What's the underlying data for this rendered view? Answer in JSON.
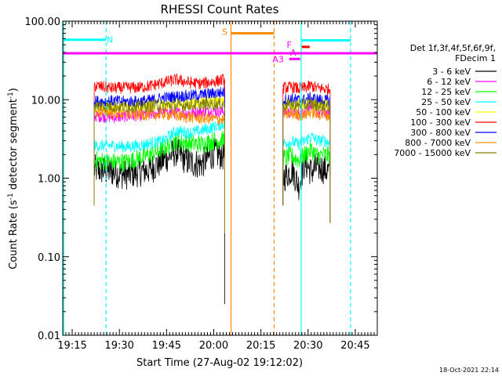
{
  "chart_data": {
    "type": "line",
    "title": "RHESSI Count Rates",
    "xlabel": "Start Time (27-Aug-02 19:12:02)",
    "ylabel_main": "Count Rate (s",
    "ylabel_sup1": "-1",
    "ylabel_mid": " detector segment",
    "ylabel_sup2": "-1",
    "ylabel_end": ")",
    "x_unit": "minutes since 19:12:02",
    "xlim": [
      0,
      100
    ],
    "ylim": [
      0.01,
      100
    ],
    "yscale": "log",
    "x_ticks": [
      {
        "m": 3,
        "label": "19:15"
      },
      {
        "m": 18,
        "label": "19:30"
      },
      {
        "m": 33,
        "label": "19:45"
      },
      {
        "m": 48,
        "label": "20:00"
      },
      {
        "m": 63,
        "label": "20:15"
      },
      {
        "m": 78,
        "label": "20:30"
      },
      {
        "m": 93,
        "label": "20:45"
      }
    ],
    "y_ticks": [
      {
        "v": 0.01,
        "label": "0.01"
      },
      {
        "v": 0.1,
        "label": "0.10"
      },
      {
        "v": 1,
        "label": "1.00"
      },
      {
        "v": 10,
        "label": "10.00"
      },
      {
        "v": 100,
        "label": "100.00"
      }
    ],
    "legend_header": [
      "Det 1f,3f,4f,5f,6f,9f,",
      "FDecim 1"
    ],
    "legend_placement": "right",
    "series": [
      {
        "name": "3 - 6 keV",
        "color": "#000000",
        "segA": [
          [
            10,
            1.3
          ],
          [
            16,
            1.2
          ],
          [
            20,
            1.1
          ],
          [
            24,
            1.2
          ],
          [
            28,
            1.3
          ],
          [
            32,
            1.7
          ],
          [
            36,
            2.2
          ],
          [
            40,
            1.6
          ],
          [
            44,
            1.5
          ],
          [
            48,
            2.1
          ],
          [
            51.5,
            1.9
          ]
        ],
        "segB": [
          [
            70,
            1.0
          ],
          [
            73,
            1.3
          ],
          [
            75,
            0.8
          ],
          [
            77,
            1.6
          ],
          [
            79,
            1.2
          ],
          [
            81,
            1.4
          ],
          [
            83,
            1.3
          ],
          [
            85,
            1.2
          ]
        ]
      },
      {
        "name": "6 - 12 keV",
        "color": "#ff00ff",
        "segA": [
          [
            10,
            6.2
          ],
          [
            16,
            6.0
          ],
          [
            20,
            6.1
          ],
          [
            24,
            6.3
          ],
          [
            28,
            6.5
          ],
          [
            32,
            7.0
          ],
          [
            36,
            6.8
          ],
          [
            40,
            6.8
          ],
          [
            44,
            7.0
          ],
          [
            48,
            7.2
          ],
          [
            51.5,
            7.0
          ]
        ],
        "segB": [
          [
            70,
            7.0
          ],
          [
            73,
            6.9
          ],
          [
            75,
            6.6
          ],
          [
            77,
            7.1
          ],
          [
            79,
            9.0
          ],
          [
            81,
            6.8
          ],
          [
            83,
            6.7
          ],
          [
            85,
            6.6
          ]
        ]
      },
      {
        "name": "12 - 25 keV",
        "color": "#00ff00",
        "segA": [
          [
            10,
            1.7
          ],
          [
            16,
            1.6
          ],
          [
            20,
            1.6
          ],
          [
            24,
            1.8
          ],
          [
            28,
            2.0
          ],
          [
            32,
            2.4
          ],
          [
            36,
            3.0
          ],
          [
            40,
            2.8
          ],
          [
            44,
            2.7
          ],
          [
            48,
            3.0
          ],
          [
            51.5,
            3.1
          ]
        ],
        "segB": [
          [
            70,
            1.8
          ],
          [
            73,
            1.9
          ],
          [
            75,
            1.7
          ],
          [
            77,
            2.0
          ],
          [
            79,
            2.3
          ],
          [
            81,
            1.9
          ],
          [
            83,
            2.0
          ],
          [
            85,
            1.9
          ]
        ]
      },
      {
        "name": "25 - 50 keV",
        "color": "#00ffff",
        "segA": [
          [
            10,
            2.6
          ],
          [
            16,
            2.6
          ],
          [
            20,
            2.5
          ],
          [
            24,
            2.6
          ],
          [
            28,
            2.8
          ],
          [
            32,
            3.0
          ],
          [
            36,
            4.0
          ],
          [
            40,
            3.8
          ],
          [
            44,
            4.0
          ],
          [
            48,
            4.5
          ],
          [
            51.5,
            5.0
          ]
        ],
        "segB": [
          [
            70,
            2.8
          ],
          [
            73,
            2.9
          ],
          [
            75,
            2.7
          ],
          [
            77,
            3.0
          ],
          [
            79,
            3.4
          ],
          [
            81,
            3.0
          ],
          [
            83,
            3.0
          ],
          [
            85,
            2.8
          ]
        ]
      },
      {
        "name": "50 - 100 keV",
        "color": "#ffff00",
        "segA": [
          [
            10,
            8.2
          ],
          [
            16,
            8.0
          ],
          [
            20,
            8.1
          ],
          [
            24,
            8.3
          ],
          [
            28,
            8.5
          ],
          [
            32,
            9.0
          ],
          [
            36,
            8.9
          ],
          [
            40,
            9.0
          ],
          [
            44,
            9.2
          ],
          [
            48,
            9.5
          ],
          [
            51.5,
            9.5
          ]
        ],
        "segB": [
          [
            70,
            9.0
          ],
          [
            73,
            8.9
          ],
          [
            75,
            8.7
          ],
          [
            77,
            9.0
          ],
          [
            79,
            9.3
          ],
          [
            81,
            8.8
          ],
          [
            83,
            8.7
          ],
          [
            85,
            8.5
          ]
        ]
      },
      {
        "name": "100 - 300 keV",
        "color": "#ff0000",
        "segA": [
          [
            10,
            15.0
          ],
          [
            16,
            14.0
          ],
          [
            20,
            14.2
          ],
          [
            24,
            14.3
          ],
          [
            28,
            15.0
          ],
          [
            32,
            16.5
          ],
          [
            36,
            18.0
          ],
          [
            40,
            16.5
          ],
          [
            44,
            16.0
          ],
          [
            48,
            17.0
          ],
          [
            51.5,
            18.0
          ]
        ],
        "segB": [
          [
            70,
            14.0
          ],
          [
            73,
            14.5
          ],
          [
            75,
            13.8
          ],
          [
            77,
            14.2
          ],
          [
            79,
            15.0
          ],
          [
            81,
            14.0
          ],
          [
            83,
            13.8
          ],
          [
            85,
            13.5
          ]
        ]
      },
      {
        "name": "300 - 800 keV",
        "color": "#0000ff",
        "segA": [
          [
            10,
            9.5
          ],
          [
            16,
            9.6
          ],
          [
            20,
            9.4
          ],
          [
            24,
            9.5
          ],
          [
            28,
            9.8
          ],
          [
            32,
            10.5
          ],
          [
            36,
            11.0
          ],
          [
            40,
            11.2
          ],
          [
            44,
            11.5
          ],
          [
            48,
            12.0
          ],
          [
            51.5,
            12.5
          ]
        ],
        "segB": [
          [
            70,
            10.0
          ],
          [
            73,
            10.2
          ],
          [
            75,
            9.8
          ],
          [
            77,
            10.0
          ],
          [
            79,
            10.5
          ],
          [
            81,
            10.0
          ],
          [
            83,
            9.8
          ],
          [
            85,
            9.6
          ]
        ]
      },
      {
        "name": "800 - 7000 keV",
        "color": "#ff8c00",
        "segA": [
          [
            10,
            7.0
          ],
          [
            16,
            6.8
          ],
          [
            20,
            6.6
          ],
          [
            24,
            6.5
          ],
          [
            28,
            6.4
          ],
          [
            32,
            6.6
          ],
          [
            36,
            6.3
          ],
          [
            40,
            6.0
          ],
          [
            44,
            5.8
          ],
          [
            48,
            5.7
          ],
          [
            51.5,
            5.5
          ]
        ],
        "segB": [
          [
            70,
            6.5
          ],
          [
            73,
            6.6
          ],
          [
            75,
            6.4
          ],
          [
            77,
            6.5
          ],
          [
            79,
            7.0
          ],
          [
            81,
            6.5
          ],
          [
            83,
            6.4
          ],
          [
            85,
            6.3
          ]
        ]
      },
      {
        "name": "7000 - 15000 keV",
        "color": "#808000",
        "segA": [
          [
            10,
            8.4
          ],
          [
            16,
            8.2
          ],
          [
            20,
            8.1
          ],
          [
            24,
            8.2
          ],
          [
            28,
            8.3
          ],
          [
            32,
            8.5
          ],
          [
            36,
            8.4
          ],
          [
            40,
            8.6
          ],
          [
            44,
            8.7
          ],
          [
            48,
            8.8
          ],
          [
            51.5,
            8.9
          ]
        ],
        "segB": [
          [
            70,
            8.6
          ],
          [
            73,
            8.5
          ],
          [
            75,
            8.3
          ],
          [
            77,
            8.5
          ],
          [
            79,
            8.8
          ],
          [
            81,
            8.4
          ],
          [
            83,
            8.3
          ],
          [
            85,
            8.2
          ]
        ]
      }
    ],
    "vlines": [
      {
        "m": 0.3,
        "color": "#00ffff",
        "dashed": false
      },
      {
        "m": 13.8,
        "color": "#00ffff",
        "dashed": true
      },
      {
        "m": 53.5,
        "color": "#ff8c00",
        "dashed": false
      },
      {
        "m": 67.2,
        "color": "#ff8c00",
        "dashed": true
      },
      {
        "m": 75.8,
        "color": "#00ffff",
        "dashed": false
      },
      {
        "m": 91.5,
        "color": "#00ffff",
        "dashed": true
      }
    ],
    "annotations": [
      {
        "label": "N",
        "color": "#00ffff",
        "bar_m": [
          0.3,
          13.8
        ],
        "bar_v": 58,
        "text_m": 15,
        "text_v": 58
      },
      {
        "label": "S",
        "color": "#ff8c00",
        "bar_m": [
          53.5,
          67.2
        ],
        "bar_v": 70,
        "text_m": 51.5,
        "text_v": 73
      },
      {
        "label": "F",
        "color": "#ff00ff",
        "bar_m": null,
        "bar_v": null,
        "text_m": 72,
        "text_v": 50
      },
      {
        "label": "A",
        "color": "#ff00ff",
        "bar_m": [
          72,
          75.5
        ],
        "bar_v": 33,
        "text_m": 73.3,
        "text_v": 40
      },
      {
        "label": "A3",
        "color": "#ff00ff",
        "bar_m": null,
        "bar_v": null,
        "text_m": 68.5,
        "text_v": 33
      },
      {
        "label": "",
        "color": "#ff0000",
        "bar_m": [
          76,
          78.5
        ],
        "bar_v": 47,
        "text_m": null,
        "text_v": null
      },
      {
        "label": "",
        "color": "#00ffff",
        "bar_m": [
          76,
          91.5
        ],
        "bar_v": 57,
        "text_m": null,
        "text_v": null
      }
    ],
    "hline": {
      "v": 39,
      "color": "#ff00ff"
    },
    "timestamp": "18-Oct-2021 22:14"
  }
}
